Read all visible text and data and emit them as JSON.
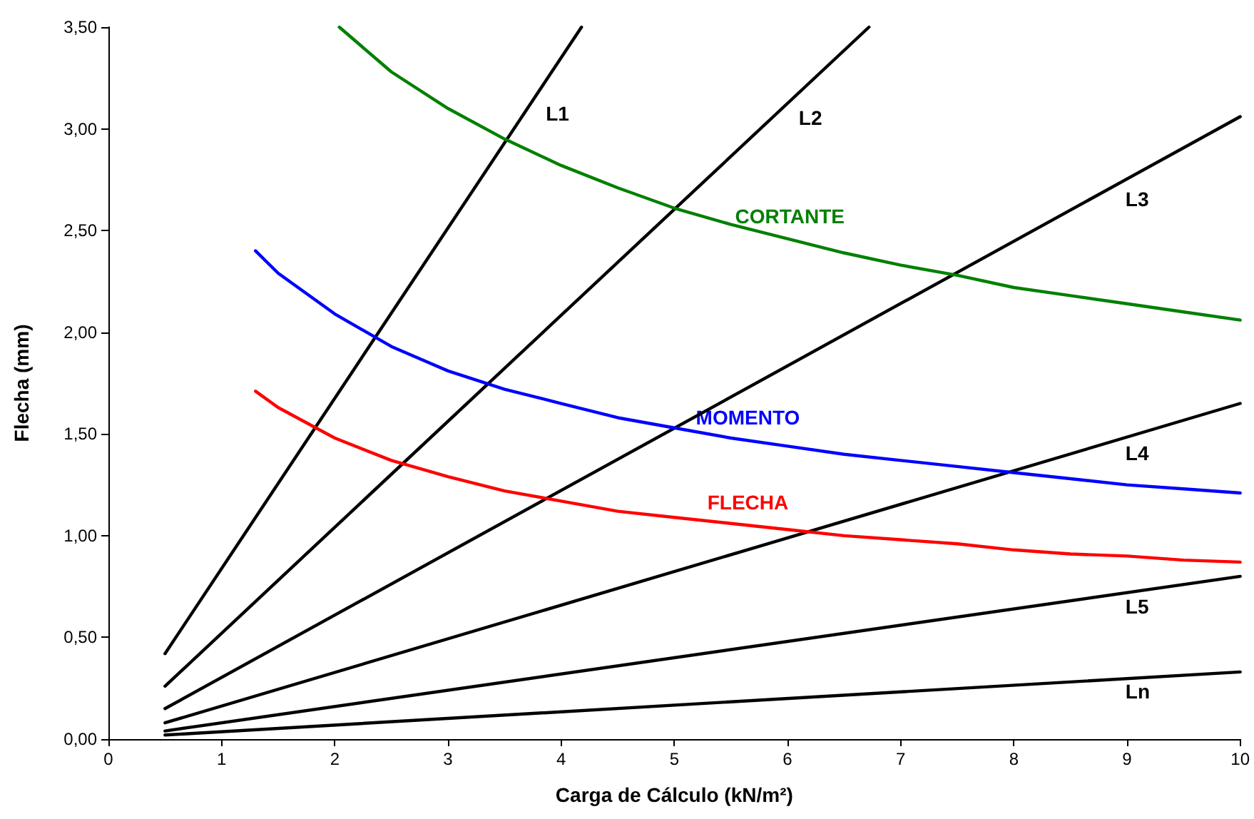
{
  "chart_data": {
    "type": "line",
    "xlabel": "Carga de Cálculo (kN/m²)",
    "ylabel": "Flecha (mm)",
    "xlim": [
      0,
      10
    ],
    "xticks": [
      0,
      1,
      2,
      3,
      4,
      5,
      6,
      7,
      8,
      9,
      10
    ],
    "ylim": [
      0,
      3.5
    ],
    "yticks": [
      {
        "value": 0,
        "label": "0,00"
      },
      {
        "value": 0.5,
        "label": "0,50"
      },
      {
        "value": 1,
        "label": "1,00"
      },
      {
        "value": 1.5,
        "label": "1,50"
      },
      {
        "value": 2,
        "label": "2,00"
      },
      {
        "value": 2.5,
        "label": "2,50"
      },
      {
        "value": 3,
        "label": "3,00"
      },
      {
        "value": 3.5,
        "label": "3,50"
      }
    ],
    "grid": false,
    "marker": "none",
    "line_style": "solid",
    "series": [
      {
        "name": "L1",
        "color": "#000000",
        "x": [
          0.5,
          4.18
        ],
        "values": [
          0.42,
          3.5
        ]
      },
      {
        "name": "L2",
        "color": "#000000",
        "x": [
          0.5,
          6.72
        ],
        "values": [
          0.26,
          3.5
        ]
      },
      {
        "name": "L3",
        "color": "#000000",
        "x": [
          0.5,
          10
        ],
        "values": [
          0.15,
          3.06
        ]
      },
      {
        "name": "L4",
        "color": "#000000",
        "x": [
          0.5,
          10
        ],
        "values": [
          0.08,
          1.65
        ]
      },
      {
        "name": "L5",
        "color": "#000000",
        "x": [
          0.5,
          10
        ],
        "values": [
          0.04,
          0.8
        ]
      },
      {
        "name": "Ln",
        "color": "#000000",
        "x": [
          0.5,
          10
        ],
        "values": [
          0.02,
          0.33
        ]
      },
      {
        "name": "CORTANTE",
        "color": "#008000",
        "x": [
          2.04,
          2.5,
          3,
          3.5,
          4,
          4.5,
          5,
          5.5,
          6,
          6.5,
          7,
          7.5,
          8,
          8.5,
          9,
          9.5,
          10
        ],
        "values": [
          3.5,
          3.28,
          3.1,
          2.95,
          2.82,
          2.71,
          2.61,
          2.53,
          2.46,
          2.39,
          2.33,
          2.28,
          2.22,
          2.18,
          2.14,
          2.1,
          2.06
        ]
      },
      {
        "name": "MOMENTO",
        "color": "#0000ff",
        "x": [
          1.3,
          1.5,
          2,
          2.5,
          3,
          3.5,
          4,
          4.5,
          5,
          5.5,
          6,
          6.5,
          7,
          7.5,
          8,
          8.5,
          9,
          9.5,
          10
        ],
        "values": [
          2.4,
          2.29,
          2.09,
          1.93,
          1.81,
          1.72,
          1.65,
          1.58,
          1.53,
          1.48,
          1.44,
          1.4,
          1.37,
          1.34,
          1.31,
          1.28,
          1.25,
          1.23,
          1.21
        ]
      },
      {
        "name": "FLECHA",
        "color": "#ff0000",
        "x": [
          1.3,
          1.5,
          2,
          2.5,
          3,
          3.5,
          4,
          4.5,
          5,
          5.5,
          6,
          6.5,
          7,
          7.5,
          8,
          8.5,
          9,
          9.5,
          10
        ],
        "values": [
          1.71,
          1.63,
          1.48,
          1.37,
          1.29,
          1.22,
          1.17,
          1.12,
          1.09,
          1.06,
          1.03,
          1,
          0.98,
          0.96,
          0.93,
          0.91,
          0.9,
          0.88,
          0.87
        ]
      }
    ]
  }
}
